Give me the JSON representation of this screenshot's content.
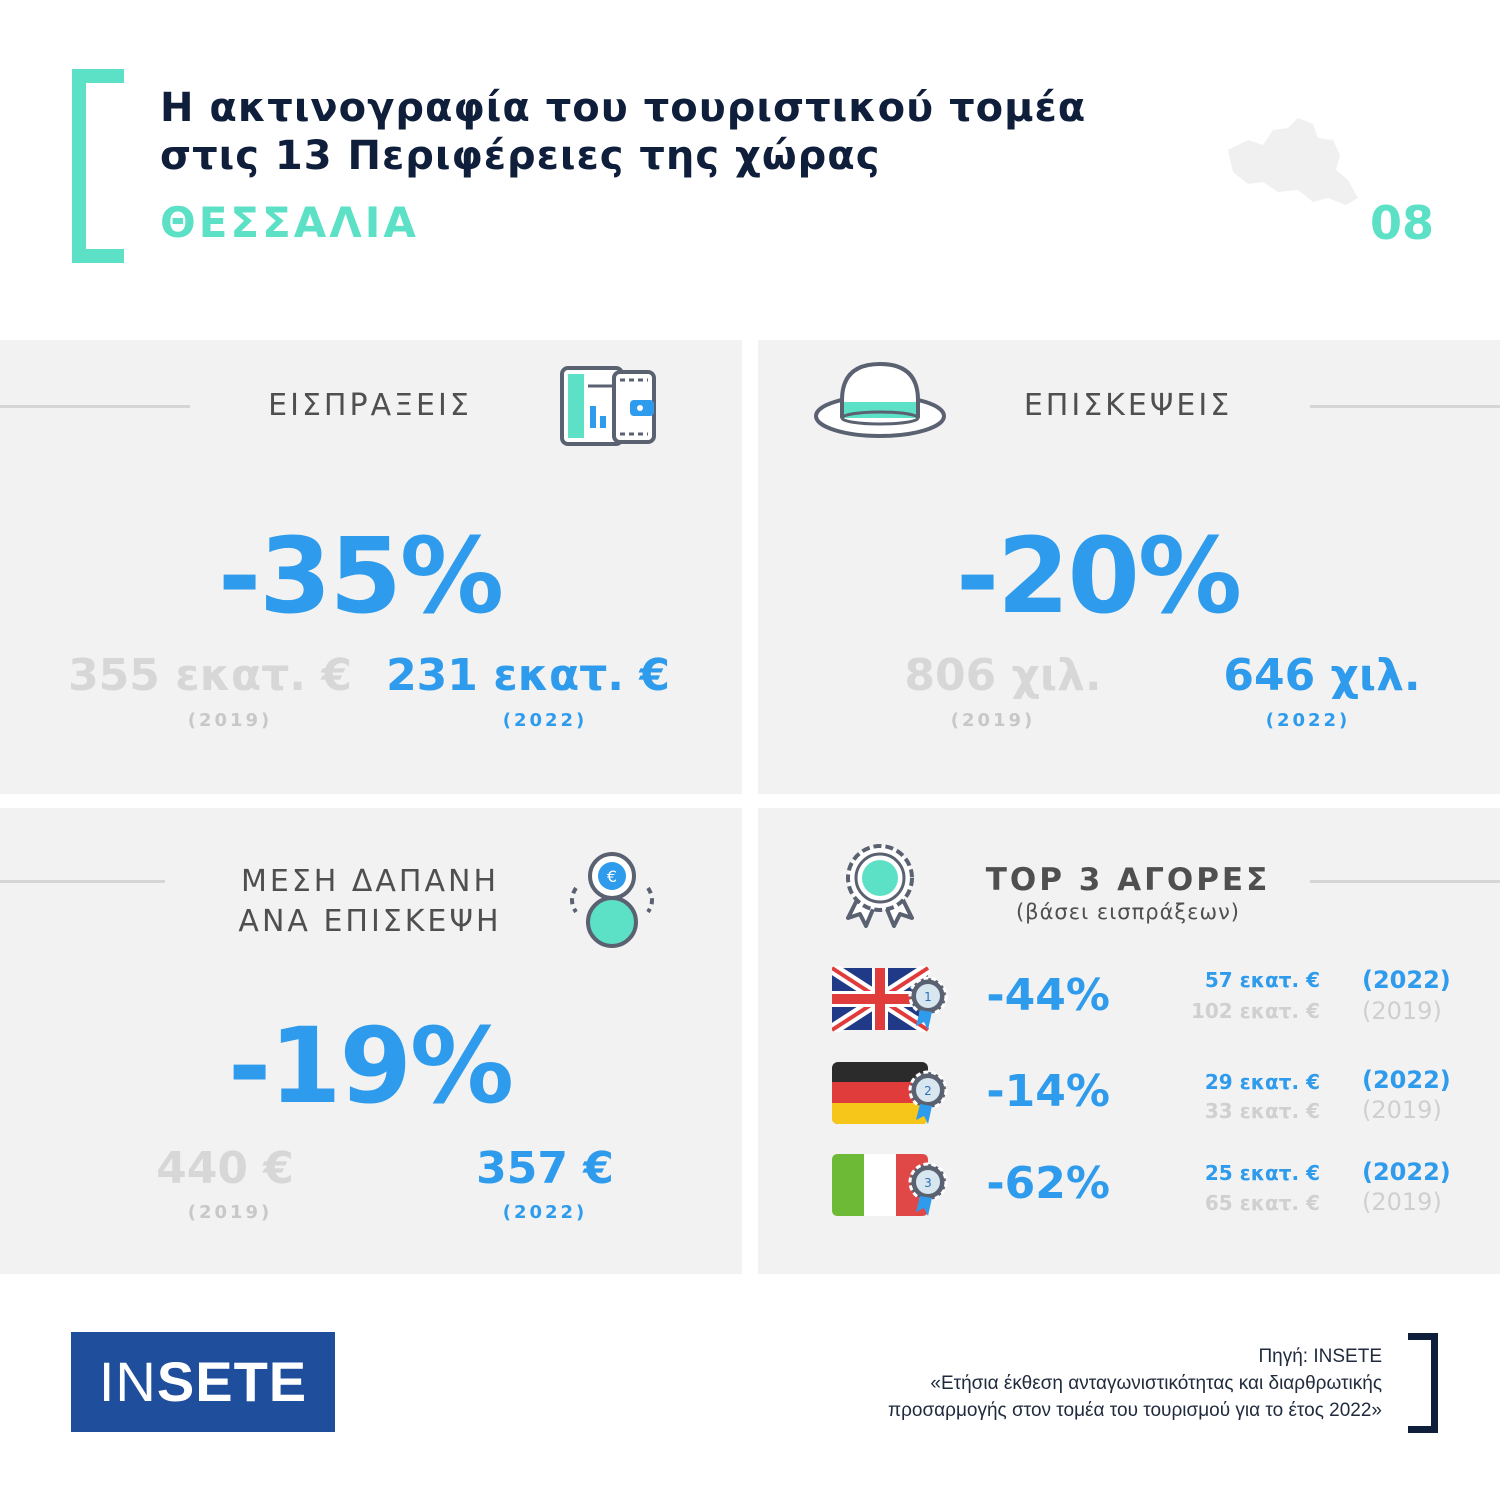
{
  "header": {
    "title_line1": "Η ακτινογραφία του τουριστικού τομέα",
    "title_line2": "στις 13 Περιφέρειες της χώρας",
    "region": "ΘΕΣΣΑΛΙΑ",
    "page_number": "08"
  },
  "receipts": {
    "title": "ΕΙΣΠΡΑΞΕΙΣ",
    "change": "-35%",
    "value_2019": "355 εκατ. €",
    "year_2019": "(2019)",
    "value_2022": "231 εκατ. €",
    "year_2022": "(2022)",
    "icon": "wallet-card-icon"
  },
  "visits": {
    "title": "ΕΠΙΣΚΕΨΕΙΣ",
    "change": "-20%",
    "value_2019": "806 χιλ.",
    "year_2019": "(2019)",
    "value_2022": "646 χιλ.",
    "year_2022": "(2022)",
    "icon": "hat-icon"
  },
  "avg_spend": {
    "title_line1": "ΜΕΣΗ ΔΑΠΑΝΗ",
    "title_line2": "ΑΝΑ ΕΠΙΣΚΕΨΗ",
    "change": "-19%",
    "value_2019": "440 €",
    "year_2019": "(2019)",
    "value_2022": "357 €",
    "year_2022": "(2022)",
    "icon": "euro-coin-icon"
  },
  "top_markets": {
    "title": "TOP 3 ΑΓΟΡΕΣ",
    "subtitle": "(βάσει εισπράξεων)",
    "icon": "award-rosette-icon",
    "markets": [
      {
        "flag": "united-kingdom-flag",
        "rank": "1",
        "change": "-44%",
        "value_2022": "57 εκατ. €",
        "value_2019": "102 εκατ. €",
        "year_2022": "(2022)",
        "year_2019": "(2019)"
      },
      {
        "flag": "germany-flag",
        "rank": "2",
        "change": "-14%",
        "value_2022": "29 εκατ. €",
        "value_2019": "33 εκατ. €",
        "year_2022": "(2022)",
        "year_2019": "(2019)"
      },
      {
        "flag": "italy-flag",
        "rank": "3",
        "change": "-62%",
        "value_2022": "25 εκατ. €",
        "value_2019": "65 εκατ. €",
        "year_2022": "(2022)",
        "year_2019": "(2019)"
      }
    ]
  },
  "footer": {
    "logo_light": "IN",
    "logo_bold": "SETE",
    "source_line1": "Πηγή: INSETE",
    "source_line2": "«Ετήσια έκθεση ανταγωνιστικότητας και διαρθρωτικής",
    "source_line3": "προσαρμογής στον τομέα του τουρισμού για το έτος 2022»"
  },
  "colors": {
    "accent_teal": "#5ce1c6",
    "accent_blue": "#2e9bec",
    "navy": "#0f1e3a",
    "panel_bg": "#f2f2f2",
    "logo_blue": "#1f4e9d"
  }
}
